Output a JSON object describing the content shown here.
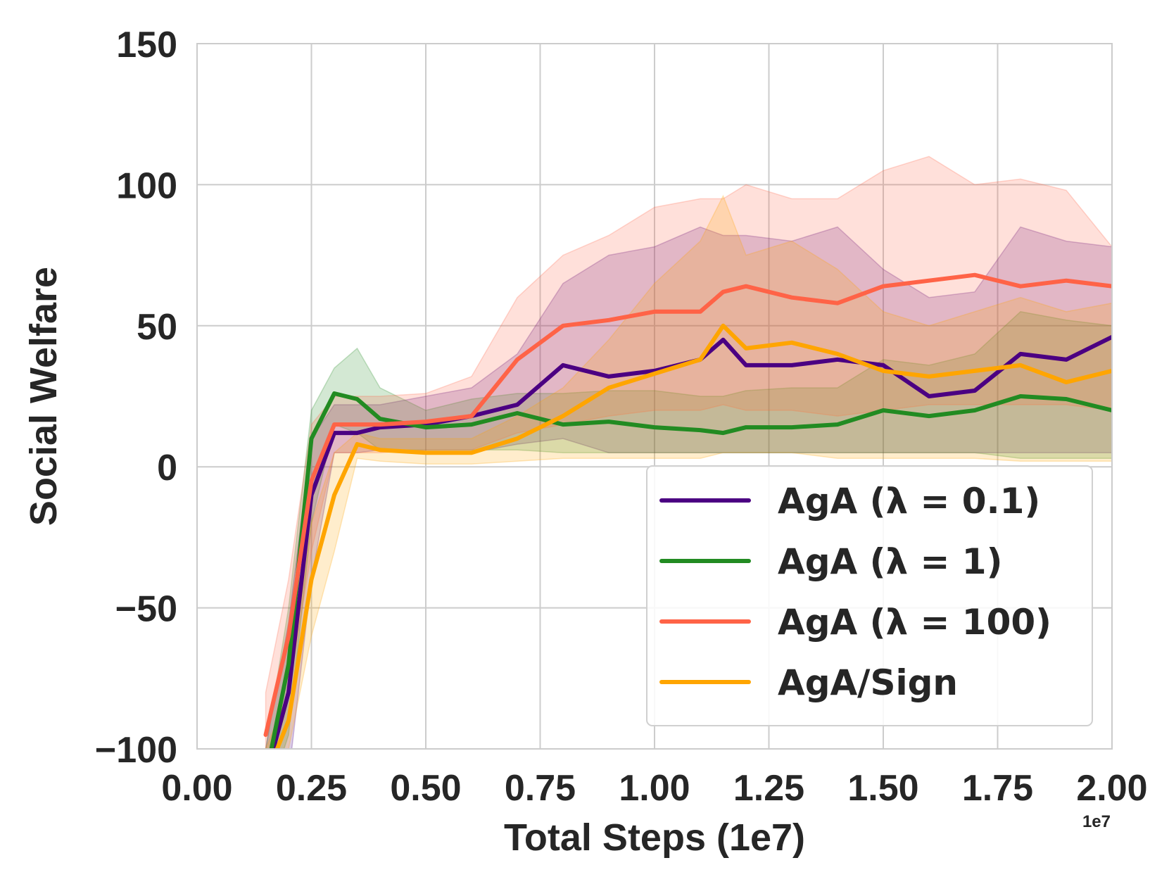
{
  "chart_data": {
    "type": "line",
    "title": "",
    "xlabel": "Total Steps (1e7)",
    "ylabel": "Social Welfare",
    "x_offset_label": "1e7",
    "xlim": [
      0.0,
      2.0
    ],
    "ylim": [
      -100,
      150
    ],
    "xticks": [
      "0.00",
      "0.25",
      "0.50",
      "0.75",
      "1.00",
      "1.25",
      "1.50",
      "1.75",
      "2.00"
    ],
    "yticks": [
      "150",
      "100",
      "50",
      "0",
      "−50",
      "−100"
    ],
    "grid": true,
    "legend_position": "lower-right",
    "x": [
      0.15,
      0.2,
      0.25,
      0.3,
      0.35,
      0.4,
      0.5,
      0.6,
      0.7,
      0.8,
      0.9,
      1.0,
      1.1,
      1.15,
      1.2,
      1.3,
      1.4,
      1.5,
      1.6,
      1.7,
      1.8,
      1.9,
      2.0
    ],
    "series": [
      {
        "name": "AgA (λ = 0.1)",
        "color": "#4b0082",
        "values": [
          -110,
          -80,
          -10,
          12,
          12,
          14,
          15,
          18,
          22,
          36,
          32,
          34,
          38,
          45,
          36,
          36,
          38,
          36,
          25,
          27,
          40,
          38,
          46
        ],
        "upper": [
          -100,
          -55,
          10,
          22,
          22,
          22,
          25,
          28,
          40,
          65,
          75,
          78,
          85,
          82,
          82,
          80,
          85,
          70,
          60,
          62,
          85,
          80,
          78
        ],
        "lower": [
          -120,
          -110,
          -40,
          5,
          5,
          6,
          5,
          5,
          8,
          10,
          5,
          5,
          5,
          5,
          5,
          5,
          5,
          5,
          5,
          5,
          5,
          5,
          5
        ]
      },
      {
        "name": "AgA (λ = 1)",
        "color": "#228b22",
        "values": [
          -110,
          -70,
          10,
          26,
          24,
          17,
          14,
          15,
          19,
          15,
          16,
          14,
          13,
          12,
          14,
          14,
          15,
          20,
          18,
          20,
          25,
          24,
          20
        ],
        "upper": [
          -100,
          -50,
          20,
          35,
          42,
          28,
          20,
          24,
          26,
          26,
          27,
          27,
          25,
          25,
          27,
          28,
          28,
          38,
          36,
          40,
          55,
          52,
          50
        ],
        "lower": [
          -120,
          -95,
          -20,
          15,
          12,
          6,
          6,
          6,
          6,
          5,
          5,
          5,
          5,
          5,
          5,
          5,
          5,
          5,
          5,
          5,
          3,
          3,
          3
        ]
      },
      {
        "name": "AgA (λ = 100)",
        "color": "#ff6347",
        "values": [
          -95,
          -60,
          -5,
          15,
          15,
          15,
          16,
          18,
          38,
          50,
          52,
          55,
          55,
          62,
          64,
          60,
          58,
          64,
          66,
          68,
          64,
          66,
          64
        ],
        "upper": [
          -80,
          -40,
          15,
          25,
          25,
          25,
          26,
          32,
          60,
          75,
          82,
          92,
          95,
          95,
          100,
          95,
          95,
          105,
          110,
          100,
          102,
          98,
          78
        ],
        "lower": [
          -105,
          -80,
          -30,
          5,
          5,
          5,
          6,
          6,
          12,
          15,
          18,
          20,
          20,
          22,
          20,
          20,
          18,
          20,
          22,
          22,
          22,
          22,
          20
        ]
      },
      {
        "name": "AgA/Sign",
        "color": "#ffa500",
        "values": [
          -110,
          -90,
          -40,
          -10,
          8,
          6,
          5,
          5,
          10,
          18,
          28,
          33,
          38,
          50,
          42,
          44,
          40,
          34,
          32,
          34,
          36,
          30,
          34
        ],
        "upper": [
          -100,
          -80,
          -20,
          5,
          12,
          10,
          10,
          10,
          18,
          28,
          45,
          65,
          80,
          96,
          75,
          80,
          70,
          55,
          50,
          55,
          60,
          55,
          58
        ],
        "lower": [
          -120,
          -100,
          -60,
          -30,
          3,
          2,
          1,
          1,
          2,
          3,
          3,
          3,
          3,
          5,
          5,
          5,
          3,
          3,
          3,
          3,
          2,
          2,
          2
        ]
      }
    ]
  }
}
